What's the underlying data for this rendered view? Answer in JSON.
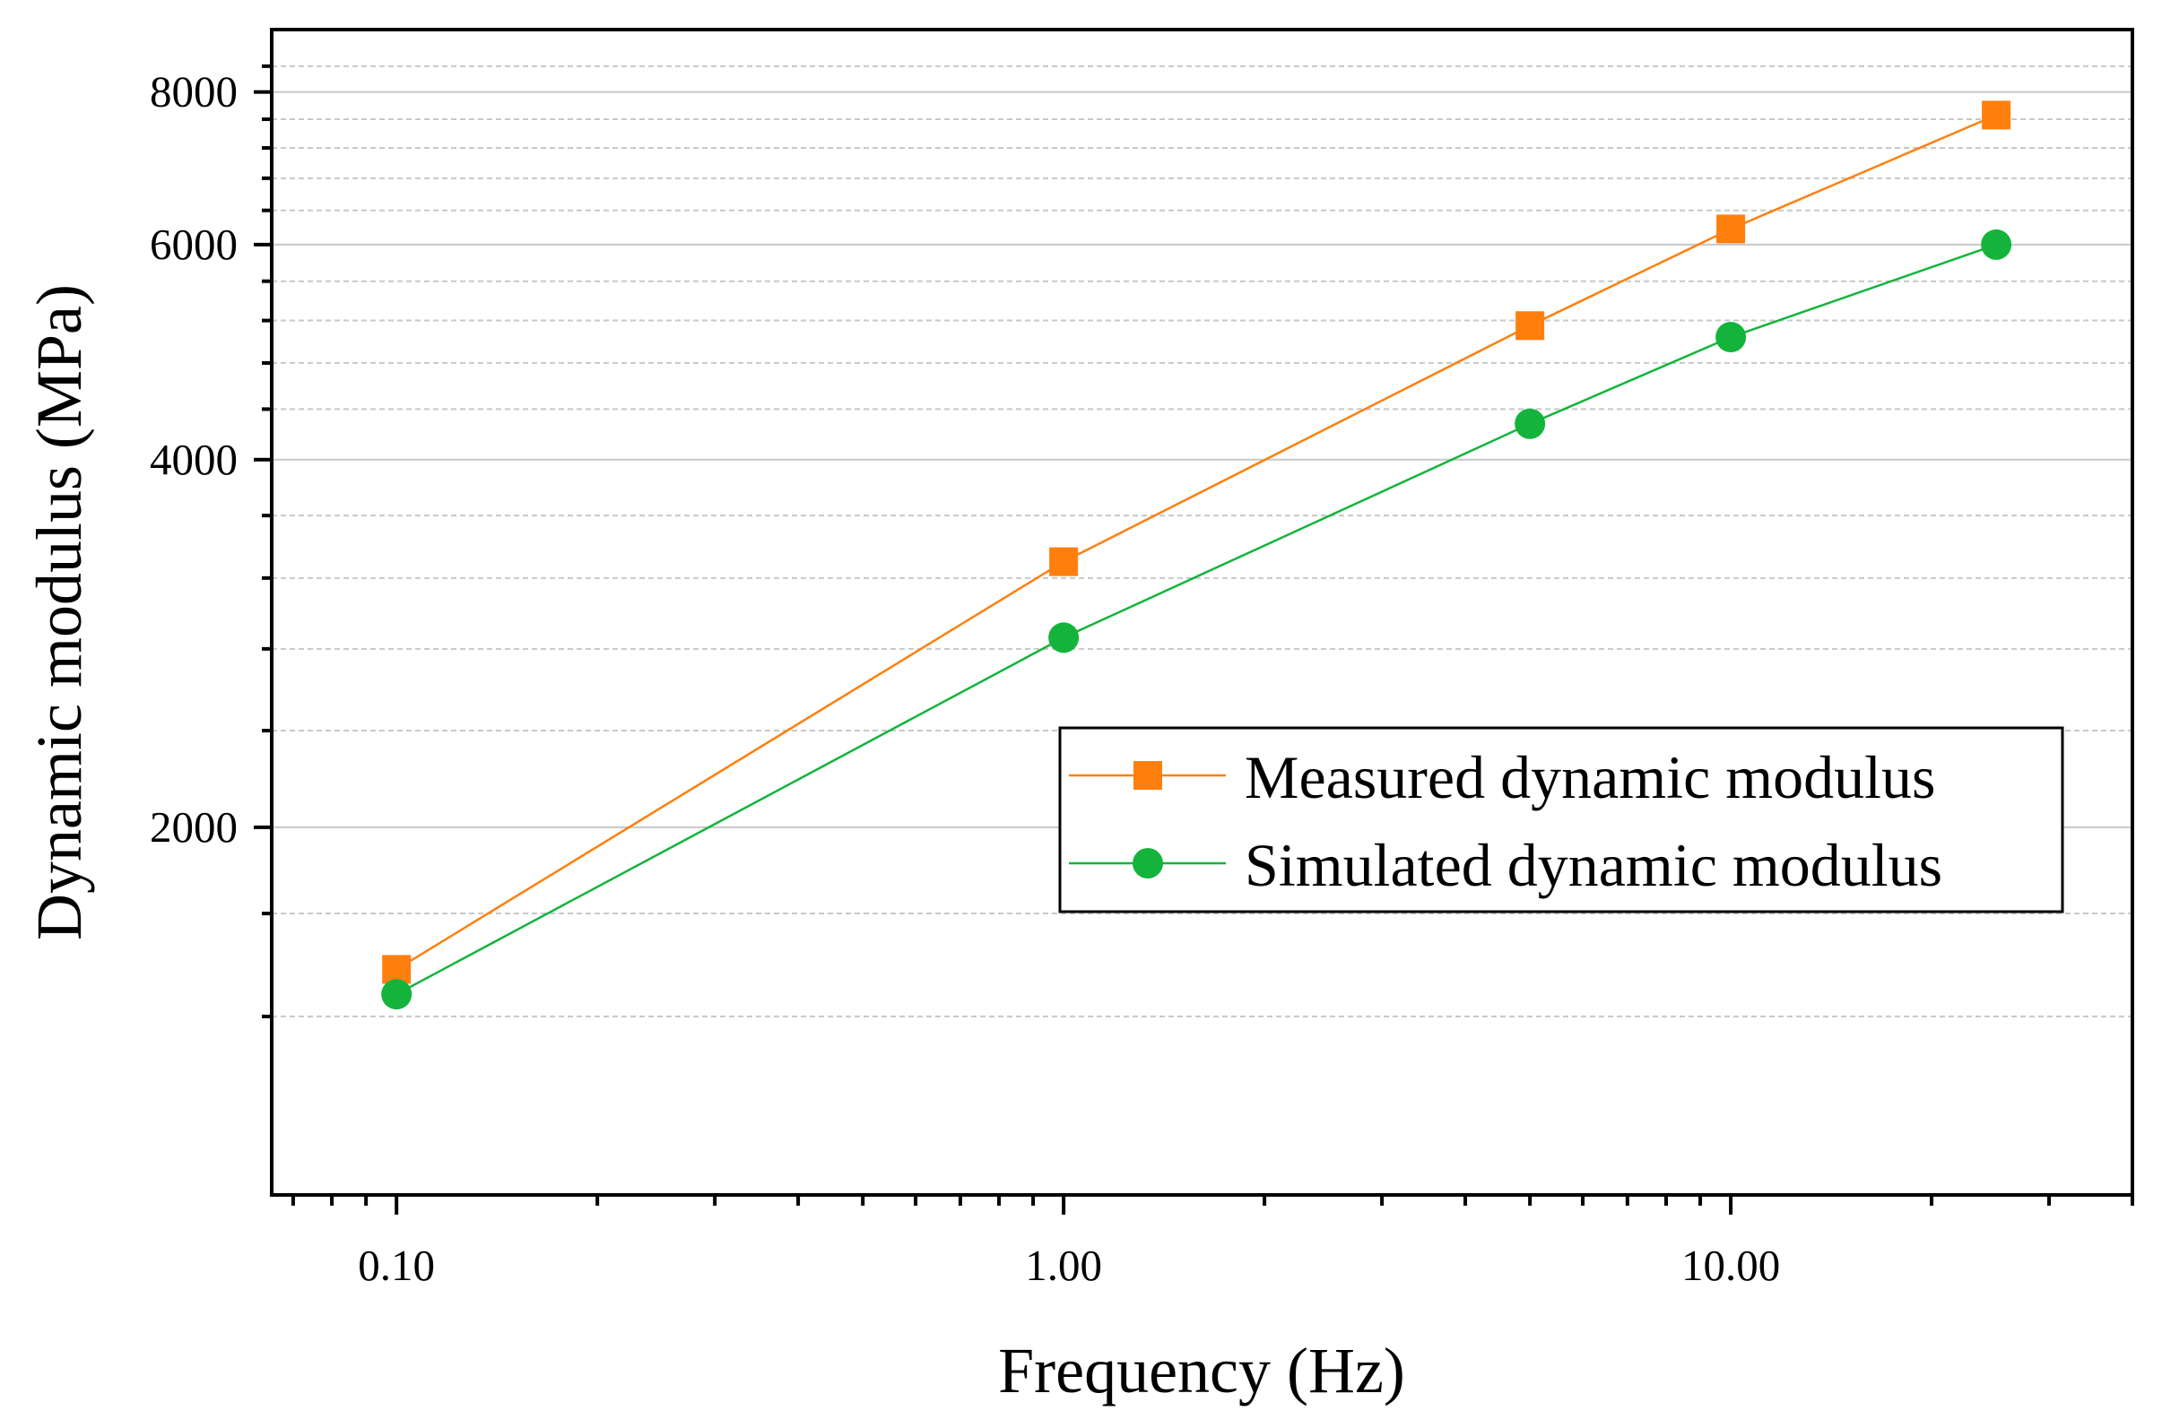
{
  "chart_data": {
    "type": "line",
    "xscale": "log",
    "yscale": "log",
    "xlabel": "Frequency (Hz)",
    "ylabel": "Dynamic modulus (MPa)",
    "xlim": [
      0.065,
      40
    ],
    "ylim": [
      1000,
      9000
    ],
    "xticks": [
      {
        "value": 0.1,
        "label": "0.10"
      },
      {
        "value": 1,
        "label": "1.00"
      },
      {
        "value": 10,
        "label": "10.00"
      }
    ],
    "yticks": [
      {
        "value": 2000,
        "label": "2000"
      },
      {
        "value": 4000,
        "label": "4000"
      },
      {
        "value": 6000,
        "label": "6000"
      },
      {
        "value": 8000,
        "label": "8000"
      }
    ],
    "y_minor_gridlines": [
      1400,
      1700,
      2400,
      2800,
      3200,
      3600,
      4400,
      4800,
      5200,
      5600,
      6400,
      6800,
      7200,
      7600,
      8400
    ],
    "x": [
      0.1,
      1,
      5,
      10,
      25
    ],
    "series": [
      {
        "name": "Measured dynamic modulus",
        "marker": "square",
        "color": "#ff7f0e",
        "values": [
          1530,
          3300,
          5150,
          6180,
          7660
        ]
      },
      {
        "name": "Simulated dynamic modulus",
        "marker": "circle",
        "color": "#14b43c",
        "values": [
          1460,
          2860,
          4280,
          5040,
          6000
        ]
      }
    ],
    "legend": "center-right",
    "grid": true
  }
}
